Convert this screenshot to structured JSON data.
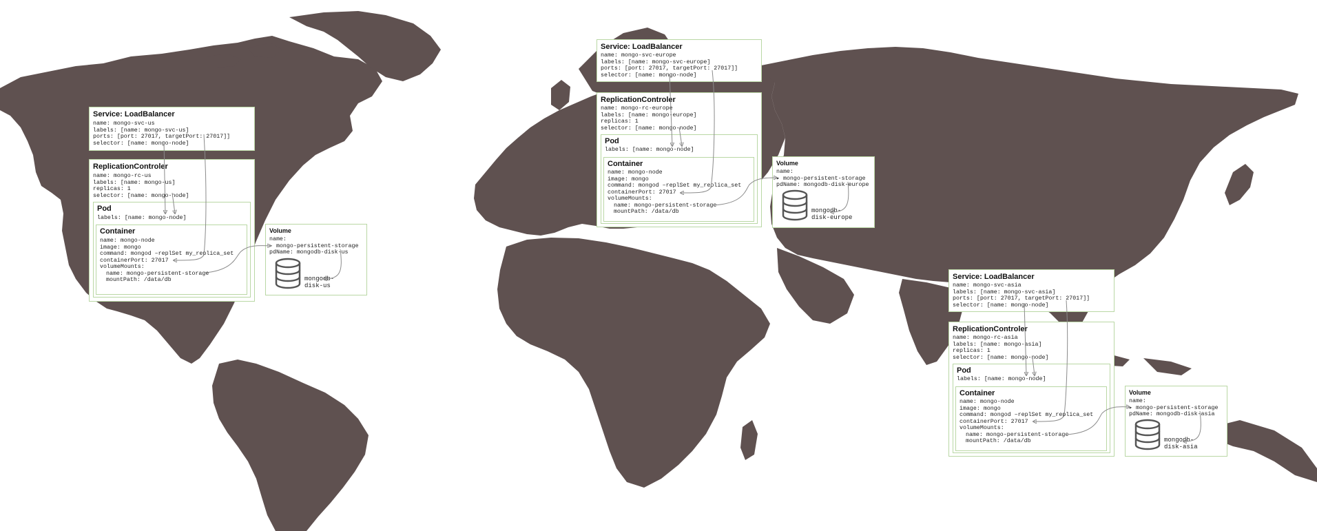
{
  "colors": {
    "map": "#5f5150",
    "border": "#b9d7a4",
    "text": "#222222",
    "arrow": "#8a8a8a"
  },
  "icons": {
    "disk": "database-cylinder-icon"
  },
  "regions": {
    "us": {
      "service": {
        "title": "Service: LoadBalancer",
        "lines": [
          "name: mongo-svc-us",
          "labels: [name: mongo-svc-us]",
          "ports: [port: 27017, targetPort: 27017]]",
          "selector: [name: mongo-node]"
        ]
      },
      "rc": {
        "title": "ReplicationControler",
        "lines": [
          "name: mongo-rc-us",
          "labels: [name: mongo-us]",
          "replicas: 1",
          "selector: [name: mongo-node]"
        ]
      },
      "pod": {
        "title": "Pod",
        "lines": [
          "labels: [name: mongo-node]"
        ]
      },
      "container": {
        "title": "Container",
        "lines": [
          "name: mongo-node",
          "image: mongo",
          "command: mongod –replSet my_replica_set",
          "containerPort: 27017",
          "volumeMounts:"
        ],
        "mount_lines": [
          "name: mongo-persistent-storage",
          "mountPath: /data/db"
        ]
      },
      "volume": {
        "title": "Volume",
        "lines": [
          "name:",
          "▸ mongo-persistent-storage",
          "pdName: mongodb-disk-us"
        ],
        "disk_label": "mongodb-\ndisk-us"
      }
    },
    "europe": {
      "service": {
        "title": "Service: LoadBalancer",
        "lines": [
          "name: mongo-svc-europe",
          "labels: [name: mongo-svc-europe]",
          "ports: [port: 27017, targetPort: 27017]]",
          "selector: [name: mongo-node]"
        ]
      },
      "rc": {
        "title": "ReplicationControler",
        "lines": [
          "name: mongo-rc-europe",
          "labels: [name: mongo-europe]",
          "replicas: 1",
          "selector: [name: mongo-node]"
        ]
      },
      "pod": {
        "title": "Pod",
        "lines": [
          "labels: [name: mongo-node]"
        ]
      },
      "container": {
        "title": "Container",
        "lines": [
          "name: mongo-node",
          "image: mongo",
          "command: mongod –replSet my_replica_set",
          "containerPort: 27017",
          "volumeMounts:"
        ],
        "mount_lines": [
          "name: mongo-persistent-storage",
          "mountPath: /data/db"
        ]
      },
      "volume": {
        "title": "Volume",
        "lines": [
          "name:",
          "▸ mongo-persistent-storage",
          "pdName: mongodb-disk-europe"
        ],
        "disk_label": "mongodb-\ndisk-europe"
      }
    },
    "asia": {
      "service": {
        "title": "Service: LoadBalancer",
        "lines": [
          "name: mongo-svc-asia",
          "labels: [name: mongo-svc-asia]",
          "ports: [port: 27017, targetPort: 27017]]",
          "selector: [name: mongo-node]"
        ]
      },
      "rc": {
        "title": "ReplicationControler",
        "lines": [
          "name: mongo-rc-asia",
          "labels: [name: mongo-asia]",
          "replicas: 1",
          "selector: [name: mongo-node]"
        ]
      },
      "pod": {
        "title": "Pod",
        "lines": [
          "labels: [name: mongo-node]"
        ]
      },
      "container": {
        "title": "Container",
        "lines": [
          "name: mongo-node",
          "image: mongo",
          "command: mongod –replSet my_replica_set",
          "containerPort: 27017",
          "volumeMounts:"
        ],
        "mount_lines": [
          "name: mongo-persistent-storage",
          "mountPath: /data/db"
        ]
      },
      "volume": {
        "title": "Volume",
        "lines": [
          "name:",
          "▸ mongo-persistent-storage",
          "pdName: mongodb-disk-asia"
        ],
        "disk_label": "mongodb-\ndisk-asia"
      }
    }
  }
}
